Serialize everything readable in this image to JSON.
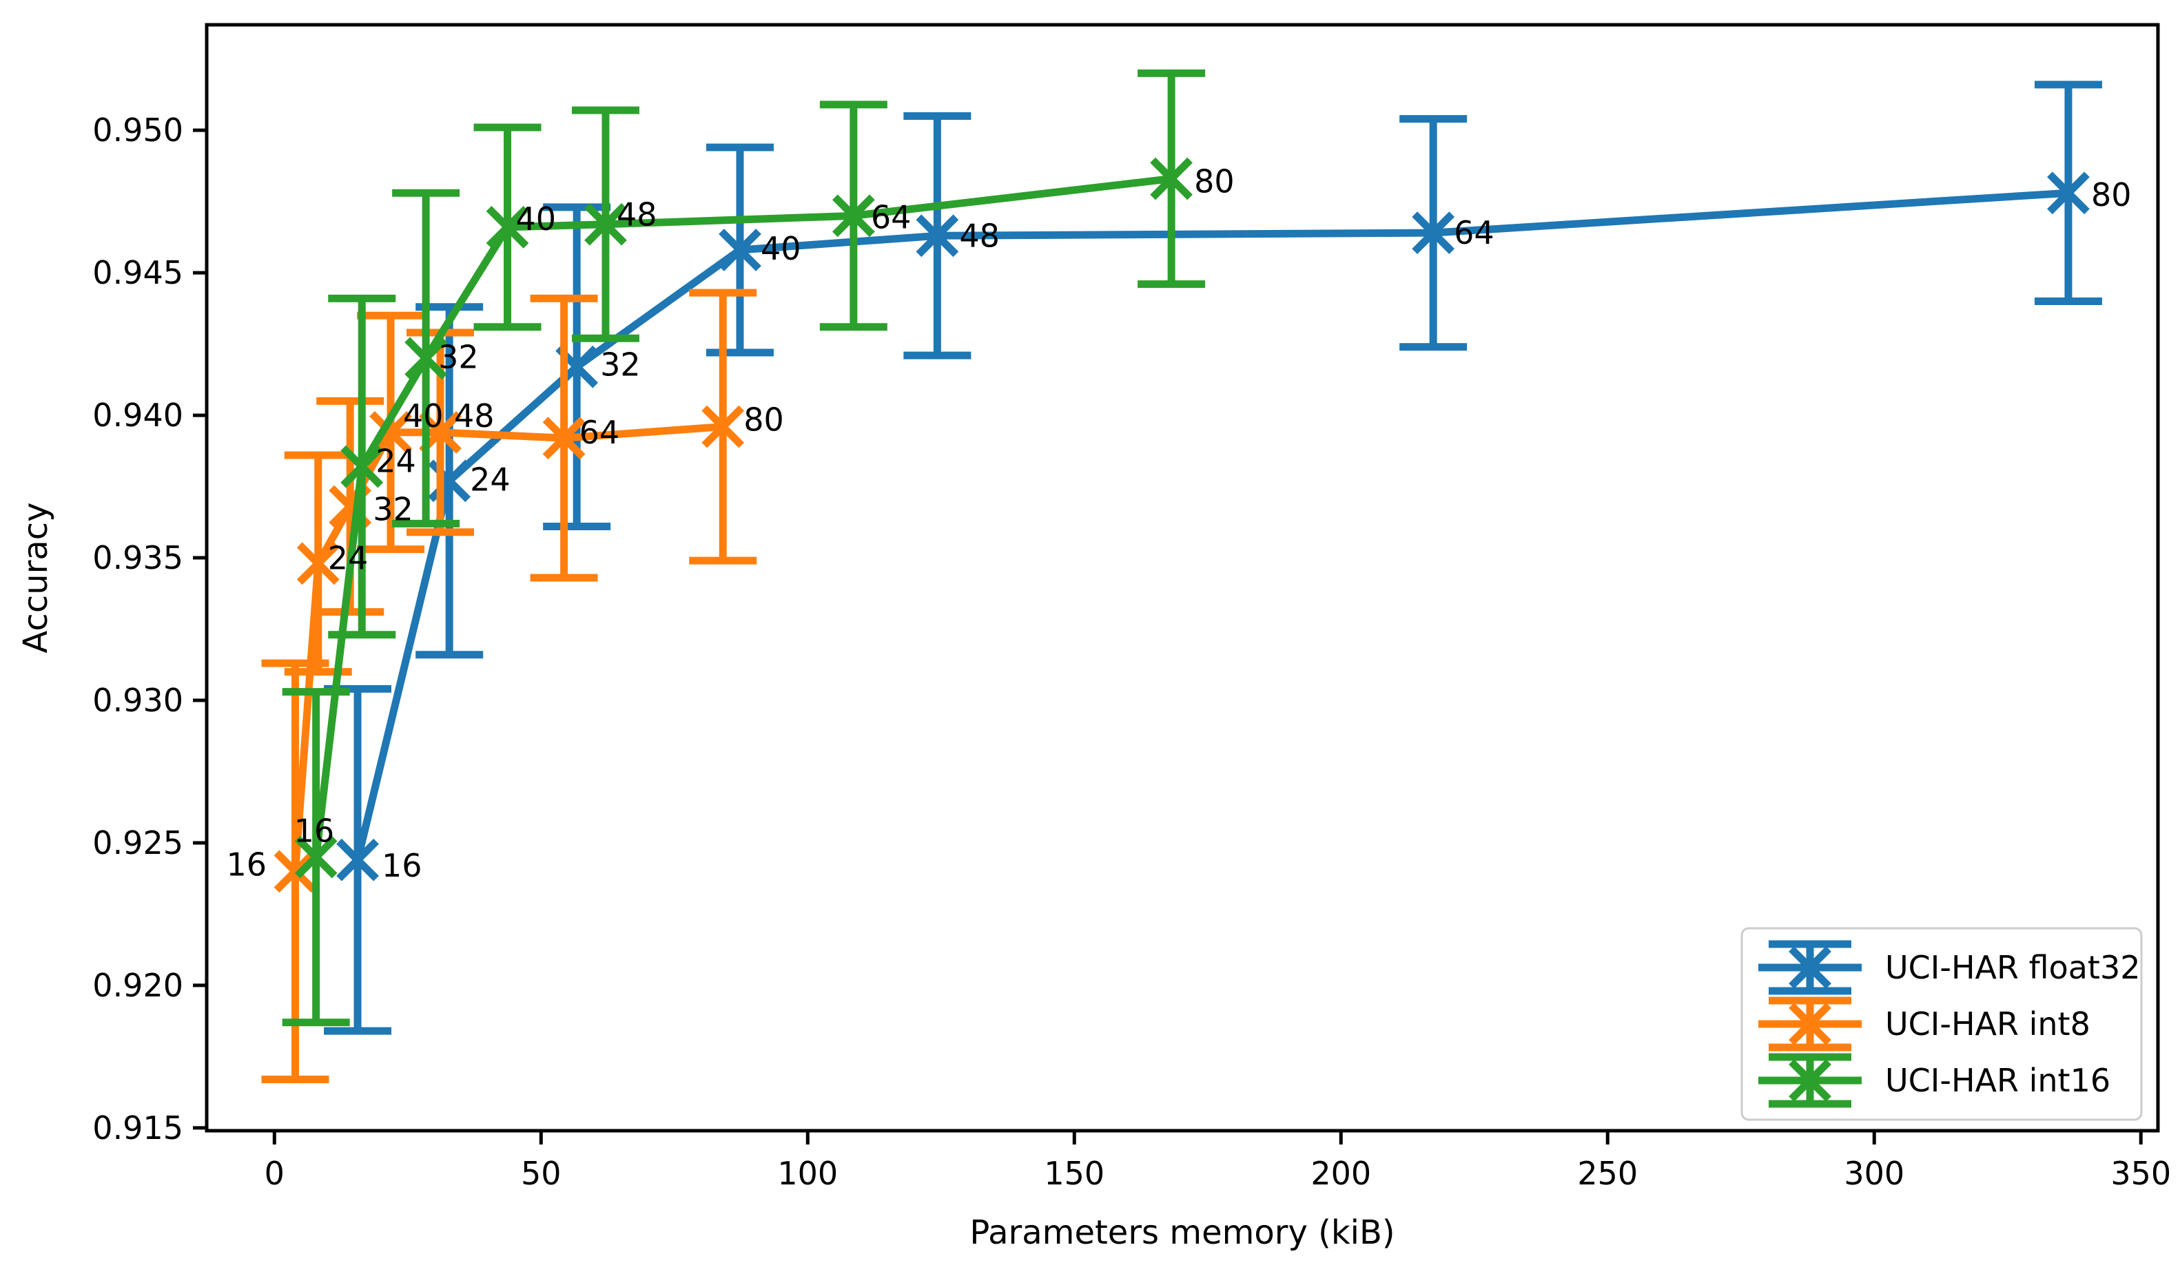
{
  "chart_data": {
    "type": "line",
    "title": "",
    "xlabel": "Parameters memory (kiB)",
    "ylabel": "Accuracy",
    "xlim": [
      -12.7,
      353.2
    ],
    "ylim": [
      0.9149,
      0.9537
    ],
    "x_ticks": [
      0,
      50,
      100,
      150,
      200,
      250,
      300,
      350
    ],
    "y_ticks": [
      0.915,
      0.92,
      0.925,
      0.93,
      0.935,
      0.94,
      0.945,
      0.95
    ],
    "y_tick_decimals": 3,
    "grid": false,
    "legend_position": "lower right",
    "marker": "x",
    "error_caps": true,
    "series": [
      {
        "name": "UCI-HAR float32",
        "color": "#1f77b4",
        "points": [
          {
            "label": "16",
            "x": 15.6,
            "y": 0.9244,
            "yerr": 0.006,
            "lox": 35,
            "loy": -12
          },
          {
            "label": "24",
            "x": 32.8,
            "y": 0.9377,
            "yerr": 0.0061,
            "lox": 30,
            "loy": -22
          },
          {
            "label": "32",
            "x": 56.7,
            "y": 0.9417,
            "yerr": 0.0056,
            "lox": 34,
            "loy": -23
          },
          {
            "label": "40",
            "x": 87.3,
            "y": 0.9458,
            "yerr": 0.0036,
            "lox": 30,
            "loy": -22
          },
          {
            "label": "48",
            "x": 124.3,
            "y": 0.9463,
            "yerr": 0.0042,
            "lox": 32,
            "loy": -20
          },
          {
            "label": "64",
            "x": 217.3,
            "y": 0.9464,
            "yerr": 0.004,
            "lox": 30,
            "loy": -20
          },
          {
            "label": "80",
            "x": 336.4,
            "y": 0.9478,
            "yerr": 0.0038,
            "lox": 33,
            "loy": -17
          }
        ]
      },
      {
        "name": "UCI-HAR int8",
        "color": "#ff7f0e",
        "points": [
          {
            "label": "16",
            "x": 3.9,
            "y": 0.924,
            "yerr": 0.0073,
            "lox": -100,
            "loy": -30
          },
          {
            "label": "24",
            "x": 8.2,
            "y": 0.9348,
            "yerr": 0.0038,
            "lox": 14,
            "loy": -28
          },
          {
            "label": "32",
            "x": 14.2,
            "y": 0.9368,
            "yerr": 0.0037,
            "lox": 33,
            "loy": -16
          },
          {
            "label": "40",
            "x": 21.8,
            "y": 0.9394,
            "yerr": 0.0041,
            "lox": 18,
            "loy": -44
          },
          {
            "label": "48",
            "x": 31.1,
            "y": 0.9394,
            "yerr": 0.0035,
            "lox": 20,
            "loy": -44
          },
          {
            "label": "64",
            "x": 54.3,
            "y": 0.9392,
            "yerr": 0.0049,
            "lox": 22,
            "loy": -28
          },
          {
            "label": "80",
            "x": 84.1,
            "y": 0.9396,
            "yerr": 0.0047,
            "lox": 30,
            "loy": -30
          }
        ]
      },
      {
        "name": "UCI-HAR int16",
        "color": "#2ca02c",
        "points": [
          {
            "label": "16",
            "x": 7.8,
            "y": 0.9245,
            "yerr": 0.0058,
            "lox": -32,
            "loy": -58
          },
          {
            "label": "24",
            "x": 16.4,
            "y": 0.9382,
            "yerr": 0.0059,
            "lox": 20,
            "loy": -28
          },
          {
            "label": "32",
            "x": 28.4,
            "y": 0.942,
            "yerr": 0.0058,
            "lox": 18,
            "loy": -22
          },
          {
            "label": "40",
            "x": 43.7,
            "y": 0.9466,
            "yerr": 0.0035,
            "lox": 12,
            "loy": -32
          },
          {
            "label": "48",
            "x": 62.1,
            "y": 0.9467,
            "yerr": 0.004,
            "lox": 16,
            "loy": -34
          },
          {
            "label": "64",
            "x": 108.6,
            "y": 0.947,
            "yerr": 0.0039,
            "lox": 25,
            "loy": -18
          },
          {
            "label": "80",
            "x": 168.2,
            "y": 0.9483,
            "yerr": 0.0037,
            "lox": 33,
            "loy": -16
          }
        ]
      }
    ]
  }
}
